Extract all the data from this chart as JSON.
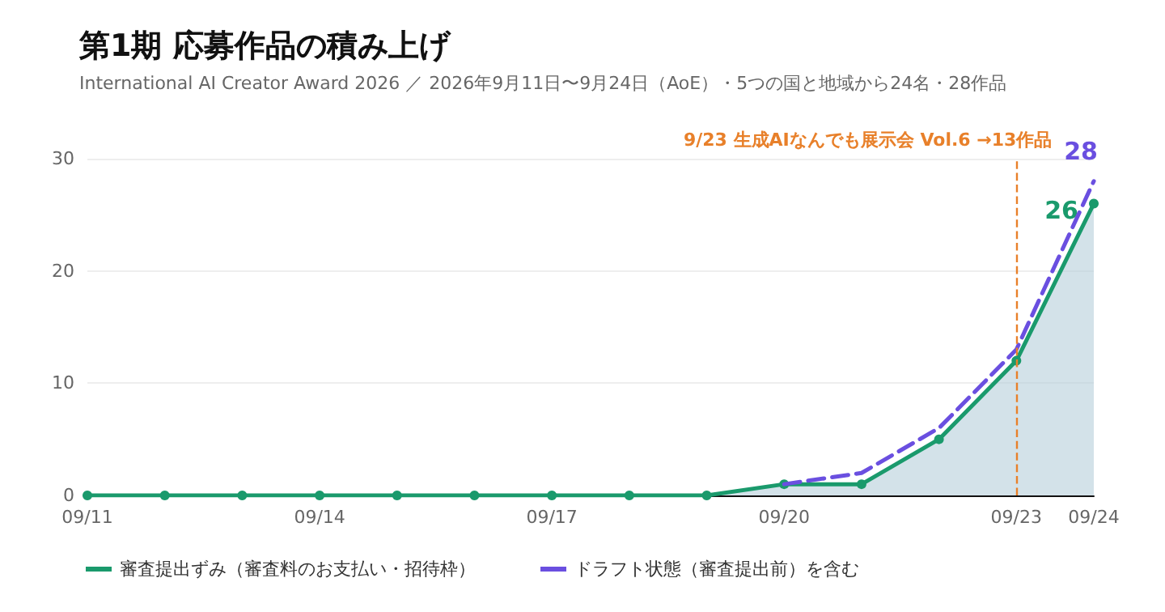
{
  "chart_data": {
    "type": "line",
    "title": "第1期 応募作品の積み上げ",
    "subtitle": "International AI Creator Award 2026 ／ 2026年9月11日〜9月24日（AoE）・5つの国と地域から24名・28作品",
    "categories": [
      "09/11",
      null,
      null,
      "09/14",
      null,
      null,
      "09/17",
      null,
      null,
      "09/20",
      null,
      null,
      "09/23",
      "09/24"
    ],
    "series": [
      {
        "name": "審査提出ずみ（審査料のお支払い・招待枠）",
        "type": "area",
        "color": "#1a9a6c",
        "marker": "circle",
        "line_style": "solid",
        "values": [
          0,
          0,
          0,
          0,
          0,
          0,
          0,
          0,
          0,
          1,
          1,
          5,
          12,
          26
        ],
        "value_labels": [
          null,
          null,
          null,
          null,
          null,
          null,
          null,
          null,
          null,
          null,
          null,
          null,
          null,
          "26"
        ]
      },
      {
        "name": "ドラフト状態（審査提出前）を含む",
        "color": "#6a4fe0",
        "marker": "none",
        "line_style": "dashed",
        "values": [
          null,
          null,
          null,
          null,
          null,
          null,
          null,
          null,
          null,
          1,
          2,
          6,
          13,
          28
        ],
        "value_labels": [
          null,
          null,
          null,
          null,
          null,
          null,
          null,
          null,
          null,
          null,
          null,
          null,
          null,
          "28"
        ]
      }
    ],
    "ylim": [
      0,
      30
    ],
    "yticks": [
      0,
      10,
      20,
      30
    ],
    "grid": "y",
    "legend": "bottom left",
    "ref_lines": [
      {
        "axis": "x",
        "value": "09/23",
        "label": "9/23 生成AIなんでも展示会 Vol.6 →13作品",
        "color": "#e8802a",
        "line_style": "dashed"
      }
    ]
  }
}
